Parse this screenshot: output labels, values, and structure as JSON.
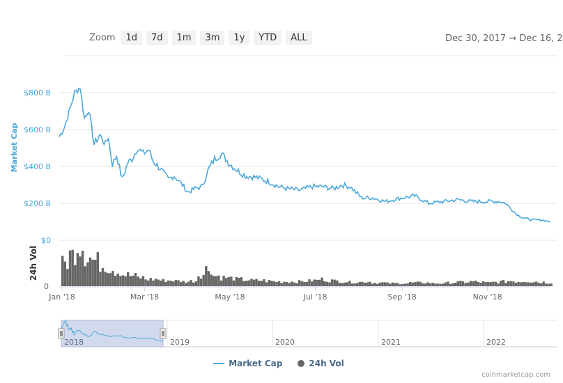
{
  "toolbar": {
    "zoom_label": "Zoom",
    "buttons": [
      "1d",
      "7d",
      "1m",
      "3m",
      "1y",
      "YTD",
      "ALL"
    ],
    "range_text": "Dec 30, 2017  →  Dec 16, 2"
  },
  "chart_data": {
    "type": "line",
    "series": [
      {
        "name": "Market Cap",
        "color": "#4ba7db",
        "x": [
          "2017-12-30",
          "2018-01-03",
          "2018-01-07",
          "2018-01-10",
          "2018-01-14",
          "2018-01-17",
          "2018-01-20",
          "2018-01-24",
          "2018-01-28",
          "2018-02-01",
          "2018-02-03",
          "2018-02-06",
          "2018-02-09",
          "2018-02-13",
          "2018-02-17",
          "2018-02-20",
          "2018-02-24",
          "2018-02-28",
          "2018-03-04",
          "2018-03-07",
          "2018-03-12",
          "2018-03-18",
          "2018-03-22",
          "2018-03-27",
          "2018-04-01",
          "2018-04-06",
          "2018-04-11",
          "2018-04-16",
          "2018-04-20",
          "2018-04-25",
          "2018-04-30",
          "2018-05-06",
          "2018-05-12",
          "2018-05-20",
          "2018-05-28",
          "2018-06-05",
          "2018-06-11",
          "2018-06-20",
          "2018-06-28",
          "2018-07-06",
          "2018-07-14",
          "2018-07-20",
          "2018-07-26",
          "2018-08-03",
          "2018-08-11",
          "2018-08-20",
          "2018-09-01",
          "2018-09-10",
          "2018-09-20",
          "2018-10-01",
          "2018-10-11",
          "2018-10-20",
          "2018-11-01",
          "2018-11-10",
          "2018-11-14",
          "2018-11-18",
          "2018-11-22",
          "2018-11-27",
          "2018-12-03",
          "2018-12-10",
          "2018-12-16"
        ],
        "values": [
          560,
          620,
          720,
          800,
          830,
          660,
          710,
          520,
          570,
          520,
          560,
          410,
          460,
          330,
          420,
          440,
          500,
          470,
          490,
          430,
          390,
          330,
          350,
          310,
          260,
          280,
          290,
          390,
          440,
          470,
          420,
          380,
          350,
          340,
          320,
          290,
          280,
          270,
          290,
          290,
          280,
          300,
          290,
          230,
          230,
          210,
          230,
          240,
          200,
          210,
          220,
          210,
          210,
          210,
          200,
          170,
          140,
          120,
          110,
          110,
          100
        ]
      },
      {
        "name": "24h Vol",
        "color": "#666666",
        "x_range": [
          "2017-12-30",
          "2018-12-16"
        ],
        "values": [
          40,
          55,
          70,
          50,
          45,
          35,
          30,
          25,
          20,
          18,
          15,
          12,
          12,
          10,
          10,
          9,
          8,
          9,
          20,
          30,
          18,
          15,
          14,
          12,
          11,
          10,
          10,
          9,
          8,
          8,
          8,
          8,
          9,
          10,
          12,
          10,
          9,
          8,
          7,
          7,
          8,
          6,
          6,
          5,
          5,
          5,
          6,
          6,
          6,
          5,
          5,
          6,
          7,
          7,
          8,
          7,
          6,
          7,
          8,
          9,
          8,
          9,
          8,
          7,
          6
        ]
      }
    ],
    "ylabel": "Market Cap",
    "ylabel2": "24h Vol",
    "ylim": [
      0,
      850
    ],
    "y_ticks": [
      "$0",
      "$200 B",
      "$400 B",
      "$600 B",
      "$800 B"
    ],
    "vol_ticks": [
      "0"
    ],
    "x_ticks": [
      "Jan '18",
      "Mar '18",
      "May '18",
      "Jul '18",
      "Sep '18",
      "Nov '18"
    ],
    "navigator": {
      "years": [
        "2018",
        "2019",
        "2020",
        "2021",
        "2022"
      ],
      "selected": [
        "2018"
      ]
    },
    "legend": [
      "Market Cap",
      "24h Vol"
    ],
    "grid": true
  },
  "credits": "coinmarketcap.com"
}
